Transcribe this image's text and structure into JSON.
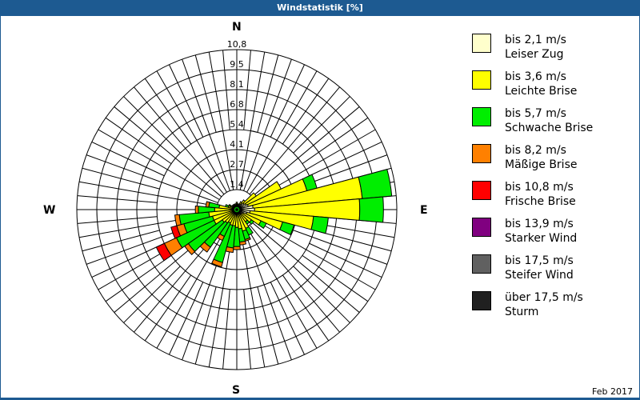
{
  "window": {
    "title": "Windstatistik [%]",
    "date": "Feb 2017"
  },
  "compass": {
    "n": "N",
    "e": "E",
    "s": "S",
    "w": "W"
  },
  "legend": [
    {
      "range": "bis 2,1 m/s",
      "name": "Leiser Zug",
      "color": "#ffffcc"
    },
    {
      "range": "bis 3,6 m/s",
      "name": "Leichte Brise",
      "color": "#ffff00"
    },
    {
      "range": "bis 5,7 m/s",
      "name": "Schwache Brise",
      "color": "#00ee00"
    },
    {
      "range": "bis 8,2 m/s",
      "name": "Mäßige Brise",
      "color": "#ff8000"
    },
    {
      "range": "bis 10,8 m/s",
      "name": "Frische Brise",
      "color": "#ff0000"
    },
    {
      "range": "bis 13,9 m/s",
      "name": "Starker Wind",
      "color": "#800080"
    },
    {
      "range": "bis 17,5 m/s",
      "name": "Steifer Wind",
      "color": "#606060"
    },
    {
      "range": "über 17,5 m/s",
      "name": "Sturm",
      "color": "#202020"
    }
  ],
  "chart_data": {
    "type": "wind-rose",
    "title": "Windstatistik [%]",
    "unit": "%",
    "rlim": [
      0,
      10.8
    ],
    "ring_labels": [
      "1,4",
      "2,7",
      "4,1",
      "5,4",
      "6,8",
      "8,1",
      "9,5",
      "10,8"
    ],
    "sector_width_deg": 10,
    "series_names": [
      "bis 2,1 m/s",
      "bis 3,6 m/s",
      "bis 5,7 m/s",
      "bis 8,2 m/s",
      "bis 10,8 m/s",
      "bis 13,9 m/s",
      "bis 17,5 m/s",
      "über 17,5 m/s"
    ],
    "sectors": [
      {
        "dir": 0,
        "values": [
          0.3,
          0.2,
          0.0,
          0,
          0,
          0,
          0,
          0
        ]
      },
      {
        "dir": 10,
        "values": [
          0.3,
          0.1,
          0.0,
          0,
          0,
          0,
          0,
          0
        ]
      },
      {
        "dir": 20,
        "values": [
          0.3,
          0.1,
          0.0,
          0,
          0,
          0,
          0,
          0
        ]
      },
      {
        "dir": 30,
        "values": [
          0.4,
          0.2,
          0.0,
          0,
          0,
          0,
          0,
          0
        ]
      },
      {
        "dir": 40,
        "values": [
          0.5,
          0.3,
          0.0,
          0,
          0,
          0,
          0,
          0
        ]
      },
      {
        "dir": 50,
        "values": [
          0.6,
          1.0,
          0.0,
          0,
          0,
          0,
          0,
          0
        ]
      },
      {
        "dir": 60,
        "values": [
          0.7,
          2.6,
          0.0,
          0,
          0,
          0,
          0,
          0
        ]
      },
      {
        "dir": 70,
        "values": [
          0.8,
          4.1,
          0.7,
          0,
          0,
          0,
          0,
          0
        ]
      },
      {
        "dir": 80,
        "values": [
          1.1,
          7.4,
          2.0,
          0,
          0,
          0,
          0,
          0
        ]
      },
      {
        "dir": 90,
        "values": [
          1.2,
          7.1,
          1.6,
          0,
          0,
          0,
          0,
          0
        ]
      },
      {
        "dir": 100,
        "values": [
          0.9,
          4.3,
          1.0,
          0,
          0,
          0,
          0,
          0
        ]
      },
      {
        "dir": 110,
        "values": [
          0.7,
          2.5,
          0.8,
          0,
          0,
          0,
          0,
          0
        ]
      },
      {
        "dir": 120,
        "values": [
          0.5,
          1.3,
          0.4,
          0,
          0,
          0,
          0,
          0
        ]
      },
      {
        "dir": 130,
        "values": [
          0.4,
          0.8,
          0.2,
          0,
          0,
          0,
          0,
          0
        ]
      },
      {
        "dir": 140,
        "values": [
          0.4,
          0.6,
          0.2,
          0,
          0,
          0,
          0,
          0
        ]
      },
      {
        "dir": 150,
        "values": [
          0.3,
          1.1,
          0.5,
          0,
          0,
          0,
          0,
          0
        ]
      },
      {
        "dir": 160,
        "values": [
          0.3,
          1.2,
          0.6,
          0.1,
          0,
          0,
          0,
          0
        ]
      },
      {
        "dir": 170,
        "values": [
          0.3,
          1.0,
          0.9,
          0.2,
          0,
          0,
          0,
          0
        ]
      },
      {
        "dir": 180,
        "values": [
          0.3,
          0.9,
          1.3,
          0.2,
          0,
          0,
          0,
          0
        ]
      },
      {
        "dir": 190,
        "values": [
          0.3,
          0.8,
          1.5,
          0.3,
          0,
          0,
          0,
          0
        ]
      },
      {
        "dir": 200,
        "values": [
          0.3,
          0.8,
          2.6,
          0.3,
          0,
          0,
          0,
          0
        ]
      },
      {
        "dir": 210,
        "values": [
          0.3,
          0.7,
          1.0,
          0.3,
          0,
          0,
          0,
          0
        ]
      },
      {
        "dir": 220,
        "values": [
          0.3,
          0.8,
          2.0,
          0.4,
          0,
          0,
          0,
          0
        ]
      },
      {
        "dir": 230,
        "values": [
          0.3,
          0.9,
          2.8,
          0.3,
          0,
          0,
          0,
          0
        ]
      },
      {
        "dir": 240,
        "values": [
          0.3,
          1.4,
          2.8,
          0.9,
          0.6,
          0,
          0,
          0
        ]
      },
      {
        "dir": 250,
        "values": [
          0.3,
          1.4,
          2.0,
          0.5,
          0.4,
          0,
          0,
          0
        ]
      },
      {
        "dir": 260,
        "values": [
          0.3,
          1.6,
          2.0,
          0.3,
          0.0,
          0,
          0,
          0
        ]
      },
      {
        "dir": 270,
        "values": [
          0.3,
          1.2,
          1.1,
          0.2,
          0,
          0,
          0,
          0
        ]
      },
      {
        "dir": 280,
        "values": [
          0.3,
          0.9,
          0.7,
          0.2,
          0,
          0,
          0,
          0
        ]
      },
      {
        "dir": 290,
        "values": [
          0.3,
          0.3,
          0.2,
          0,
          0,
          0,
          0,
          0
        ]
      },
      {
        "dir": 300,
        "values": [
          0.3,
          0.2,
          0.1,
          0,
          0,
          0,
          0,
          0
        ]
      },
      {
        "dir": 310,
        "values": [
          0.3,
          0.1,
          0.0,
          0,
          0,
          0,
          0,
          0
        ]
      },
      {
        "dir": 320,
        "values": [
          0.3,
          0.1,
          0.0,
          0,
          0,
          0,
          0,
          0
        ]
      },
      {
        "dir": 330,
        "values": [
          0.3,
          0.1,
          0.0,
          0,
          0,
          0,
          0,
          0
        ]
      },
      {
        "dir": 340,
        "values": [
          0.3,
          0.1,
          0.0,
          0,
          0,
          0,
          0,
          0
        ]
      },
      {
        "dir": 350,
        "values": [
          0.3,
          0.1,
          0.0,
          0,
          0,
          0,
          0,
          0
        ]
      }
    ],
    "legend_position": "right"
  }
}
